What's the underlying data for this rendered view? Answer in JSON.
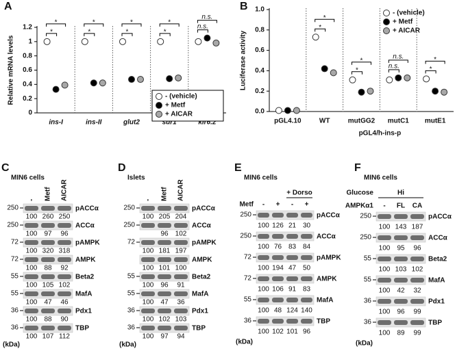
{
  "panels": [
    "A",
    "B",
    "C",
    "D",
    "E",
    "F"
  ],
  "chart_data": [
    {
      "type": "dot",
      "y_label": "Relative mRNA levels",
      "categories": [
        "ins-I",
        "ins-II",
        "glut2",
        "sur1",
        "kir6.2"
      ],
      "category_style": "italic",
      "series": [
        {
          "name": "- (vehicle)",
          "color": "#ffffff",
          "values": [
            1.0,
            1.0,
            1.0,
            1.0,
            1.0
          ]
        },
        {
          "name": "+ Metf",
          "color": "#000000",
          "values": [
            0.33,
            0.42,
            0.47,
            0.48,
            1.05
          ]
        },
        {
          "name": "+ AICAR",
          "color": "#a8a8a8",
          "values": [
            0.39,
            0.42,
            0.47,
            0.49,
            0.98
          ]
        }
      ],
      "ylim": [
        0,
        1.2
      ],
      "yticks": [
        0,
        0.2,
        0.4,
        0.6,
        0.8,
        1,
        1.2
      ],
      "significance": [
        [
          "*",
          "*"
        ],
        [
          "*",
          "*"
        ],
        [
          "*",
          "*"
        ],
        [
          "*",
          "*"
        ],
        [
          "n.s.",
          "n.s."
        ]
      ],
      "legend": "lower right",
      "legend_frame": true
    },
    {
      "type": "dot",
      "y_label": "Luciferase activity",
      "categories": [
        "pGL4.10",
        "WT",
        "mutGG2",
        "mutC1",
        "mutE1"
      ],
      "category_style": "normal",
      "group_label": "pGL4/h-ins-p",
      "series": [
        {
          "name": "- (vehicle)",
          "color": "#ffffff",
          "values": [
            0.01,
            0.73,
            0.31,
            0.31,
            0.32
          ]
        },
        {
          "name": "+ Metf",
          "color": "#000000",
          "values": [
            0.01,
            0.42,
            0.19,
            0.33,
            0.2
          ]
        },
        {
          "name": "+ AICAR",
          "color": "#a8a8a8",
          "values": [
            0.01,
            0.38,
            0.2,
            0.33,
            0.19
          ]
        }
      ],
      "ylim": [
        0,
        1.0
      ],
      "yticks": [
        {
          "value": 0,
          "label": "0.0"
        },
        0.2,
        0.4,
        0.6,
        0.8,
        {
          "value": 1.0,
          "label": "1.0"
        }
      ],
      "significance": [
        null,
        [
          "*",
          "*"
        ],
        [
          "*",
          "*"
        ],
        [
          "n.s.",
          "n.s."
        ],
        [
          "*",
          "*"
        ]
      ],
      "legend": "upper right",
      "legend_frame": false
    }
  ],
  "blots": [
    {
      "title": "MIN6 cells",
      "lane_labels": [
        "-",
        "Metf",
        "AICAR"
      ],
      "rotate": true,
      "unit": "(kDa)",
      "rows": [
        {
          "marker": 250,
          "protein": "pACCα",
          "values": [
            100,
            260,
            250
          ]
        },
        {
          "marker": 250,
          "protein": "ACCα",
          "values": [
            100,
            97,
            96
          ]
        },
        {
          "marker": 72,
          "protein": "pAMPK",
          "values": [
            100,
            320,
            318
          ]
        },
        {
          "marker": 72,
          "protein": "AMPK",
          "values": [
            100,
            88,
            92
          ]
        },
        {
          "marker": 55,
          "protein": "Beta2",
          "values": [
            100,
            105,
            102
          ]
        },
        {
          "marker": 55,
          "protein": "MafA",
          "values": [
            100,
            47,
            46
          ]
        },
        {
          "marker": 36,
          "protein": "Pdx1",
          "values": [
            100,
            88,
            90
          ]
        },
        {
          "marker": 36,
          "protein": "TBP",
          "values": [
            100,
            107,
            112
          ]
        }
      ]
    },
    {
      "title": "Islets",
      "lane_labels": [
        "-",
        "Metf",
        "AICAR"
      ],
      "rotate": true,
      "unit": "(kDa)",
      "rows": [
        {
          "marker": 250,
          "protein": "pACCα",
          "values": [
            100,
            205,
            204
          ]
        },
        {
          "marker": 250,
          "protein": "ACCα",
          "values": [
            null,
            96,
            102
          ]
        },
        {
          "marker": 72,
          "protein": "pAMPK",
          "values": [
            100,
            181,
            197
          ]
        },
        {
          "marker": null,
          "protein": "AMPK",
          "values": [
            100,
            101,
            100
          ]
        },
        {
          "marker": 55,
          "protein": "Beta2",
          "values": [
            100,
            96,
            91
          ]
        },
        {
          "marker": 55,
          "protein": "MafA",
          "values": [
            100,
            47,
            36
          ]
        },
        {
          "marker": 36,
          "protein": "Pdx1",
          "values": [
            100,
            102,
            103
          ]
        },
        {
          "marker": 36,
          "protein": "TBP",
          "values": [
            100,
            97,
            94
          ]
        }
      ]
    },
    {
      "title": "MIN6 cells",
      "lane_row_label": "Metf",
      "lane_labels": [
        "-",
        "+",
        "-",
        "+"
      ],
      "span_label": "+ Dorso",
      "rotate": false,
      "unit": "(kDa)",
      "rows": [
        {
          "marker": 250,
          "protein": "pACCα",
          "values": [
            100,
            126,
            21,
            30
          ]
        },
        {
          "marker": 250,
          "protein": "ACCα",
          "values": [
            100,
            76,
            83,
            84
          ]
        },
        {
          "marker": 72,
          "protein": "pAMPK",
          "values": [
            100,
            194,
            47,
            50
          ]
        },
        {
          "marker": 72,
          "protein": "AMPK",
          "values": [
            100,
            106,
            91,
            83
          ]
        },
        {
          "marker": 55,
          "protein": "MafA",
          "values": [
            100,
            48,
            124,
            140
          ]
        },
        {
          "marker": 36,
          "protein": "TBP",
          "values": [
            100,
            102,
            101,
            96
          ]
        }
      ]
    },
    {
      "title": "MIN6 cells",
      "span_row_label": "Glucose",
      "span_label": "Hi",
      "lane_row_label": "AMPKα1",
      "lane_labels": [
        "-",
        "FL",
        "CA"
      ],
      "rotate": false,
      "unit": "(kDa)",
      "rows": [
        {
          "marker": 250,
          "protein": "pACCα",
          "values": [
            100,
            143,
            187
          ]
        },
        {
          "marker": 250,
          "protein": "ACCα",
          "values": [
            100,
            95,
            96
          ]
        },
        {
          "marker": 55,
          "protein": "Beta2",
          "values": [
            100,
            103,
            102
          ]
        },
        {
          "marker": 55,
          "protein": "MafA",
          "values": [
            100,
            42,
            32
          ]
        },
        {
          "marker": 36,
          "protein": "Pdx1",
          "values": [
            100,
            96,
            99
          ]
        },
        {
          "marker": 36,
          "protein": "TBP",
          "values": [
            100,
            89,
            99
          ]
        }
      ]
    }
  ]
}
